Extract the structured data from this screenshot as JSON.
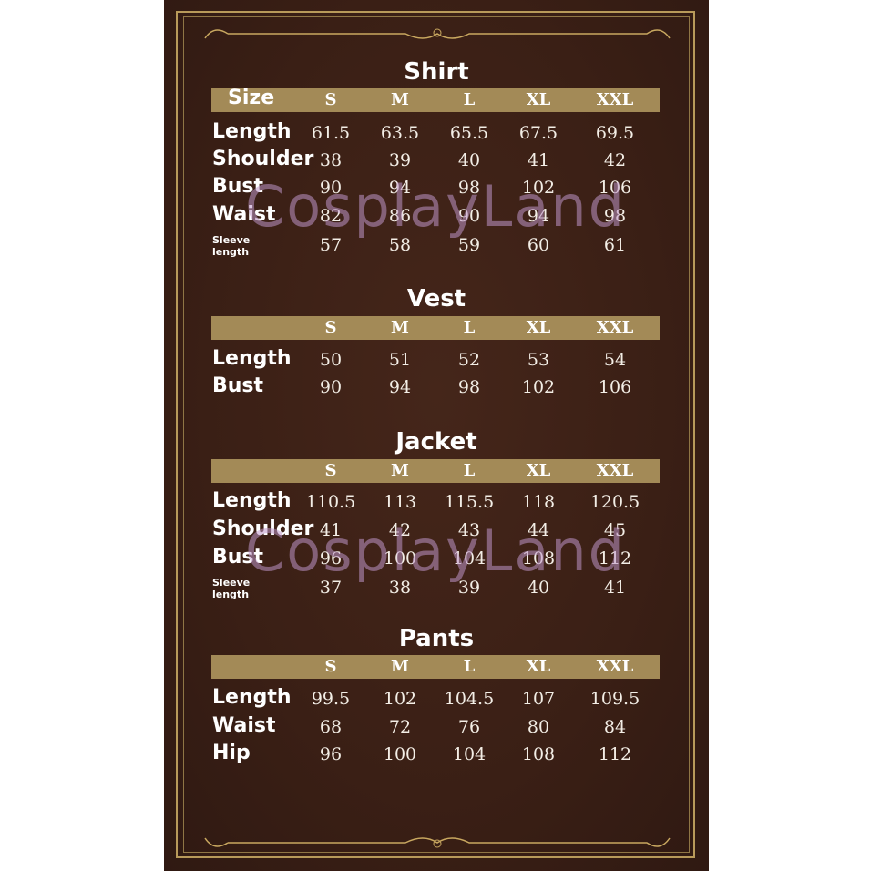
{
  "sizes": [
    "S",
    "M",
    "L",
    "XL",
    "XXL"
  ],
  "watermark": "CosplayLand",
  "colors": {
    "background": "#3b2016",
    "band": "#a38a57",
    "border": "#b89a5a"
  },
  "sections": [
    {
      "title": "Shirt",
      "header_label": "Size",
      "rows": [
        {
          "label": "Length",
          "values": [
            "61.5",
            "63.5",
            "65.5",
            "67.5",
            "69.5"
          ]
        },
        {
          "label": "Shoulder",
          "values": [
            "38",
            "39",
            "40",
            "41",
            "42"
          ]
        },
        {
          "label": "Bust",
          "values": [
            "90",
            "94",
            "98",
            "102",
            "106"
          ]
        },
        {
          "label": "Waist",
          "values": [
            "82",
            "86",
            "90",
            "94",
            "98"
          ]
        },
        {
          "label": "Sleeve length",
          "values": [
            "57",
            "58",
            "59",
            "60",
            "61"
          ]
        }
      ]
    },
    {
      "title": "Vest",
      "header_label": "",
      "rows": [
        {
          "label": "Length",
          "values": [
            "50",
            "51",
            "52",
            "53",
            "54"
          ]
        },
        {
          "label": "Bust",
          "values": [
            "90",
            "94",
            "98",
            "102",
            "106"
          ]
        }
      ]
    },
    {
      "title": "Jacket",
      "header_label": "",
      "rows": [
        {
          "label": "Length",
          "values": [
            "110.5",
            "113",
            "115.5",
            "118",
            "120.5"
          ]
        },
        {
          "label": "Shoulder",
          "values": [
            "41",
            "42",
            "43",
            "44",
            "45"
          ]
        },
        {
          "label": "Bust",
          "values": [
            "96",
            "100",
            "104",
            "108",
            "112"
          ]
        },
        {
          "label": "Sleeve length",
          "values": [
            "37",
            "38",
            "39",
            "40",
            "41"
          ]
        }
      ]
    },
    {
      "title": "Pants",
      "header_label": "",
      "rows": [
        {
          "label": "Length",
          "values": [
            "99.5",
            "102",
            "104.5",
            "107",
            "109.5"
          ]
        },
        {
          "label": "Waist",
          "values": [
            "68",
            "72",
            "76",
            "80",
            "84"
          ]
        },
        {
          "label": "Hip",
          "values": [
            "96",
            "100",
            "104",
            "108",
            "112"
          ]
        }
      ]
    }
  ]
}
